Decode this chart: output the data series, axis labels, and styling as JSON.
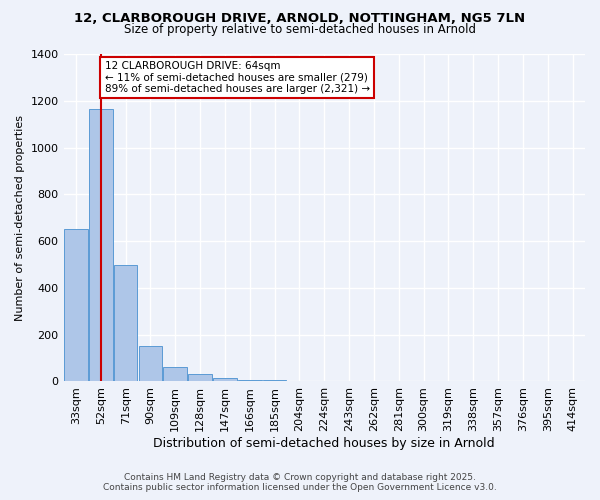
{
  "title_line1": "12, CLARBOROUGH DRIVE, ARNOLD, NOTTINGHAM, NG5 7LN",
  "title_line2": "Size of property relative to semi-detached houses in Arnold",
  "xlabel": "Distribution of semi-detached houses by size in Arnold",
  "ylabel": "Number of semi-detached properties",
  "bins": [
    "33sqm",
    "52sqm",
    "71sqm",
    "90sqm",
    "109sqm",
    "128sqm",
    "147sqm",
    "166sqm",
    "185sqm",
    "204sqm",
    "224sqm",
    "243sqm",
    "262sqm",
    "281sqm",
    "300sqm",
    "319sqm",
    "338sqm",
    "357sqm",
    "376sqm",
    "395sqm",
    "414sqm"
  ],
  "values": [
    650,
    1165,
    500,
    150,
    60,
    30,
    15,
    8,
    5,
    2,
    1,
    0,
    0,
    0,
    0,
    0,
    0,
    0,
    0,
    0,
    0
  ],
  "bar_color": "#aec6e8",
  "bar_edge_color": "#5b9bd5",
  "red_line_color": "#cc0000",
  "annotation_text": "12 CLARBOROUGH DRIVE: 64sqm\n← 11% of semi-detached houses are smaller (279)\n89% of semi-detached houses are larger (2,321) →",
  "annotation_box_color": "#ffffff",
  "annotation_box_edge": "#cc0000",
  "ylim": [
    0,
    1400
  ],
  "yticks": [
    0,
    200,
    400,
    600,
    800,
    1000,
    1200,
    1400
  ],
  "background_color": "#eef2fa",
  "grid_color": "#ffffff",
  "footer_line1": "Contains HM Land Registry data © Crown copyright and database right 2025.",
  "footer_line2": "Contains public sector information licensed under the Open Government Licence v3.0."
}
